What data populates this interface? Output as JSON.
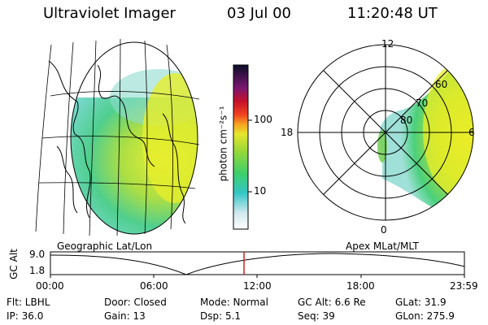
{
  "header": {
    "instrument": "Ultraviolet Imager",
    "date": "03 Jul 00",
    "time": "11:20:48 UT"
  },
  "colorbar": {
    "unit_label": "photon cm⁻²s⁻¹",
    "ticks": [
      "100",
      "10"
    ]
  },
  "polar_plot": {
    "mlt_labels": [
      "12",
      "18",
      "6",
      "0"
    ],
    "mlat_labels": [
      "60",
      "70",
      "80"
    ]
  },
  "panel_labels": {
    "left": "Geographic Lat/Lon",
    "right": "Apex MLat/MLT"
  },
  "timeline": {
    "ylabel": "GC Alt",
    "yticks": [
      "9.0",
      "1.8"
    ],
    "xticks": [
      "00:00",
      "06:00",
      "12:00",
      "18:00",
      "23:59"
    ],
    "current_time": "11:20:48",
    "altitude_range": [
      1.8,
      9.0
    ]
  },
  "status": {
    "row1": [
      "Flt: LBHL",
      "Door: Closed",
      "Mode: Normal",
      "GC Alt: 6.6 Re",
      "GLat:  31.9"
    ],
    "row2": [
      "IP: 36.0",
      "Gain: 13",
      "Dsp:     5.1",
      "Seq: 39",
      "GLon: 275.9"
    ]
  }
}
